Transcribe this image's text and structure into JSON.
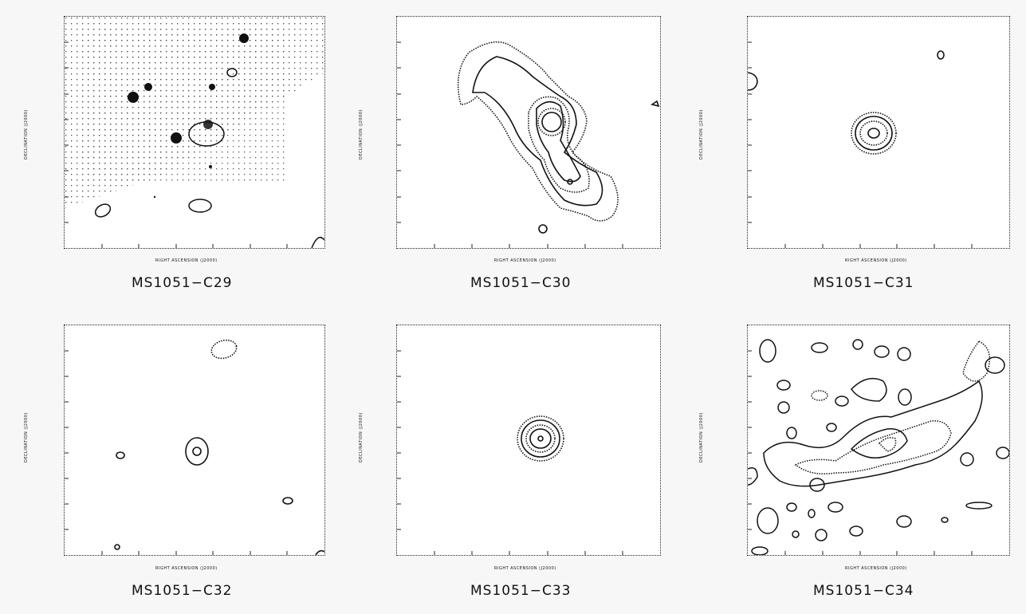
{
  "panels": [
    {
      "caption": "MS1051−C29",
      "axis_y": "DECLINATION (J2000)",
      "axis_x": "RIGHT ASCENSION (J2000)"
    },
    {
      "caption": "MS1051−C30",
      "axis_y": "DECLINATION (J2000)",
      "axis_x": "RIGHT ASCENSION (J2000)"
    },
    {
      "caption": "MS1051−C31",
      "axis_y": "DECLINATION (J2000)",
      "axis_x": "RIGHT ASCENSION (J2000)"
    },
    {
      "caption": "MS1051−C32",
      "axis_y": "DECLINATION (J2000)",
      "axis_x": "RIGHT ASCENSION (J2000)"
    },
    {
      "caption": "MS1051−C33",
      "axis_y": "DECLINATION (J2000)",
      "axis_x": "RIGHT ASCENSION (J2000)"
    },
    {
      "caption": "MS1051−C34",
      "axis_y": "DECLINATION (J2000)",
      "axis_x": "RIGHT ASCENSION (J2000)"
    }
  ],
  "colors": {
    "ink": "#111111",
    "background": "#f7f7f7",
    "plot": "#ffffff"
  }
}
